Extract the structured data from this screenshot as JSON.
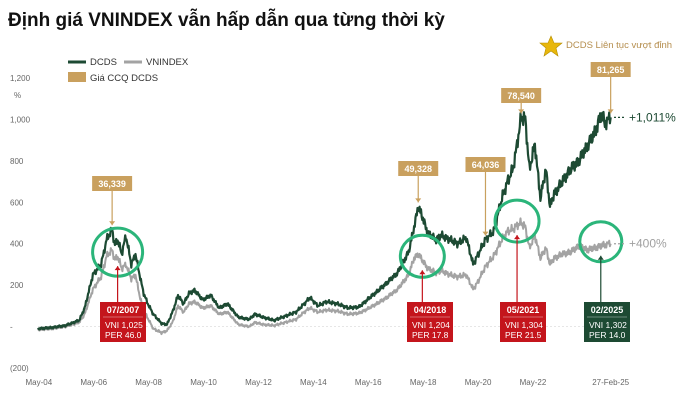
{
  "title": "Định giá VNINDEX vẫn hấp dẫn qua từng thời kỳ",
  "colors": {
    "dcds": "#1d4a33",
    "vnindex": "#a3a3a3",
    "callout": "#c9a05e",
    "red_box": "#c4151c",
    "green_box": "#1d4a33",
    "circle": "#2bb57a",
    "gain_dcds": "#1d4a33",
    "gain_vni": "#a0a0a0"
  },
  "legend": {
    "dcds": "DCDS",
    "vnindex": "VNINDEX",
    "price": "Giá CCQ DCDS"
  },
  "star_note": "DCDS Liên tục vượt đỉnh",
  "chart_data": {
    "type": "line",
    "title": "Định giá VNINDEX vẫn hấp dẫn qua từng thời kỳ",
    "ylabel": "%",
    "ylim": [
      -200,
      1200
    ],
    "y_ticks": [
      "(200)",
      "-",
      "200",
      "400",
      "600",
      "800",
      "1,000",
      "1,200"
    ],
    "y_tick_values": [
      -200,
      0,
      200,
      400,
      600,
      800,
      1000,
      1200
    ],
    "x_ticks": [
      "May-04",
      "May-06",
      "May-08",
      "May-10",
      "May-12",
      "May-14",
      "May-16",
      "May-18",
      "May-20",
      "May-22",
      "27-Feb-25"
    ],
    "x_tick_values": [
      2004.33,
      2006.33,
      2008.33,
      2010.33,
      2012.33,
      2014.33,
      2016.33,
      2018.33,
      2020.33,
      2022.33,
      2025.16
    ],
    "xlim": [
      2004.3,
      2025.5
    ],
    "legend_position": "top-left",
    "series": [
      {
        "name": "DCDS",
        "x": [
          2004.3,
          2004.8,
          2005.3,
          2005.8,
          2006.0,
          2006.3,
          2006.6,
          2006.8,
          2007.0,
          2007.1,
          2007.2,
          2007.35,
          2007.5,
          2007.7,
          2007.85,
          2008.0,
          2008.15,
          2008.3,
          2008.5,
          2008.8,
          2009.0,
          2009.2,
          2009.4,
          2009.6,
          2009.8,
          2010.0,
          2010.3,
          2010.6,
          2010.9,
          2011.2,
          2011.6,
          2012.0,
          2012.2,
          2012.5,
          2012.9,
          2013.3,
          2013.7,
          2014.0,
          2014.2,
          2014.5,
          2014.8,
          2015.2,
          2015.6,
          2016.0,
          2016.3,
          2016.7,
          2017.0,
          2017.4,
          2017.8,
          2018.0,
          2018.15,
          2018.3,
          2018.5,
          2018.8,
          2019.0,
          2019.3,
          2019.6,
          2019.9,
          2020.15,
          2020.3,
          2020.6,
          2020.9,
          2021.2,
          2021.4,
          2021.6,
          2021.75,
          2021.9,
          2022.05,
          2022.2,
          2022.4,
          2022.6,
          2022.8,
          2022.95,
          2023.1,
          2023.4,
          2023.7,
          2024.0,
          2024.3,
          2024.6,
          2024.8,
          2025.0,
          2025.16
        ],
        "y": [
          -10,
          -5,
          5,
          30,
          90,
          250,
          300,
          420,
          470,
          390,
          420,
          350,
          440,
          300,
          350,
          250,
          160,
          110,
          60,
          15,
          10,
          70,
          150,
          110,
          160,
          175,
          130,
          150,
          90,
          110,
          45,
          35,
          60,
          45,
          30,
          50,
          70,
          110,
          140,
          100,
          120,
          110,
          90,
          95,
          130,
          175,
          210,
          260,
          360,
          480,
          580,
          530,
          450,
          420,
          440,
          420,
          400,
          430,
          300,
          340,
          420,
          460,
          620,
          700,
          760,
          880,
          1010,
          1000,
          760,
          880,
          620,
          760,
          580,
          640,
          700,
          760,
          800,
          870,
          940,
          1020,
          980,
          1010
        ]
      },
      {
        "name": "VNINDEX",
        "x": [
          2004.3,
          2004.8,
          2005.3,
          2005.8,
          2006.0,
          2006.3,
          2006.6,
          2006.8,
          2007.0,
          2007.1,
          2007.2,
          2007.35,
          2007.5,
          2007.7,
          2007.85,
          2008.0,
          2008.15,
          2008.3,
          2008.5,
          2008.8,
          2009.0,
          2009.2,
          2009.4,
          2009.6,
          2009.8,
          2010.0,
          2010.3,
          2010.6,
          2010.9,
          2011.2,
          2011.6,
          2012.0,
          2012.2,
          2012.5,
          2012.9,
          2013.3,
          2013.7,
          2014.0,
          2014.2,
          2014.5,
          2014.8,
          2015.2,
          2015.6,
          2016.0,
          2016.3,
          2016.7,
          2017.0,
          2017.4,
          2017.8,
          2018.0,
          2018.15,
          2018.3,
          2018.5,
          2018.8,
          2019.0,
          2019.3,
          2019.6,
          2019.9,
          2020.15,
          2020.3,
          2020.6,
          2020.9,
          2021.2,
          2021.4,
          2021.6,
          2021.75,
          2021.9,
          2022.05,
          2022.2,
          2022.4,
          2022.6,
          2022.8,
          2022.95,
          2023.1,
          2023.4,
          2023.7,
          2024.0,
          2024.3,
          2024.6,
          2024.8,
          2025.0,
          2025.16
        ],
        "y": [
          -15,
          -10,
          0,
          20,
          60,
          180,
          240,
          340,
          370,
          320,
          340,
          280,
          300,
          230,
          250,
          150,
          80,
          40,
          -10,
          -30,
          -20,
          20,
          100,
          70,
          110,
          120,
          90,
          100,
          60,
          70,
          10,
          0,
          20,
          10,
          5,
          20,
          35,
          70,
          90,
          70,
          80,
          75,
          60,
          65,
          85,
          115,
          140,
          180,
          250,
          330,
          350,
          320,
          280,
          260,
          270,
          250,
          240,
          250,
          180,
          210,
          290,
          340,
          420,
          460,
          470,
          490,
          500,
          480,
          380,
          440,
          330,
          380,
          300,
          330,
          350,
          360,
          390,
          370,
          380,
          390,
          395,
          400
        ]
      }
    ],
    "price_callouts": [
      {
        "label": "36,339",
        "x": 2007.0,
        "y": 470
      },
      {
        "label": "49,328",
        "x": 2018.15,
        "y": 580
      },
      {
        "label": "64,036",
        "x": 2020.6,
        "y": 420
      },
      {
        "label": "78,540",
        "x": 2021.9,
        "y": 1010
      },
      {
        "label": "81,265",
        "x": 2025.16,
        "y": 1010
      }
    ],
    "valuation_boxes": [
      {
        "date": "07/2007",
        "vni": "VNI 1,025",
        "per": "PER 46.0",
        "x": 2007.2,
        "y": 340,
        "color": "red"
      },
      {
        "date": "04/2018",
        "vni": "VNI 1,204",
        "per": "PER 17.8",
        "x": 2018.3,
        "y": 320,
        "color": "red"
      },
      {
        "date": "05/2021",
        "vni": "VNI 1,304",
        "per": "PER 21.5",
        "x": 2021.75,
        "y": 490,
        "color": "red"
      },
      {
        "date": "02/2025",
        "vni": "VNI 1,302",
        "per": "PER 14.0",
        "x": 2024.8,
        "y": 390,
        "color": "green"
      }
    ],
    "gains": [
      {
        "label": "+1,011%",
        "y": 1010,
        "series": "DCDS"
      },
      {
        "label": "+400%",
        "y": 400,
        "series": "VNINDEX"
      }
    ]
  }
}
